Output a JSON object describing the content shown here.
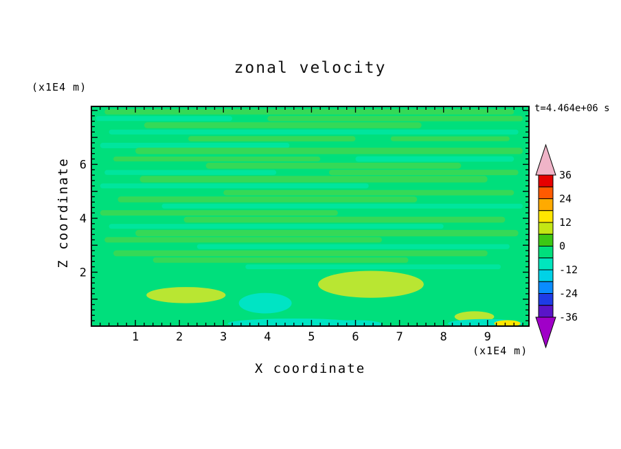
{
  "header": {
    "title": "zonal velocity",
    "time_label": "t=4.464e+06 s"
  },
  "axes": {
    "x": {
      "label": "X coordinate",
      "unit": "(x1E4 m)",
      "tick_labels": [
        "1",
        "2",
        "3",
        "4",
        "5",
        "6",
        "7",
        "8",
        "9"
      ]
    },
    "y": {
      "label": "Z coordinate",
      "unit": "(x1E4 m)",
      "tick_labels": [
        "2",
        "4",
        "6"
      ]
    }
  },
  "chart_data": {
    "type": "heatmap",
    "subtype": "filled-contour",
    "title": "zonal velocity",
    "xlabel": "X coordinate (x1E4 m)",
    "ylabel": "Z coordinate (x1E4 m)",
    "time_annotation": "t=4.464e+06 s",
    "xlim": [
      0,
      9.94
    ],
    "ylim": [
      0,
      8.15
    ],
    "x_tick_values": [
      1,
      2,
      3,
      4,
      5,
      6,
      7,
      8,
      9
    ],
    "y_tick_values": [
      2,
      4,
      6
    ],
    "contour_interval": 6,
    "base_color": "#00df7c",
    "base_value_range": [
      -6,
      0
    ],
    "streak_colors": [
      "#35d957",
      "#00e59d"
    ],
    "streaks": [
      [
        7.95,
        0.3,
        9.6,
        0.1,
        0
      ],
      [
        7.7,
        0.1,
        3.2,
        0.09,
        1
      ],
      [
        7.7,
        4.0,
        9.8,
        0.1,
        0
      ],
      [
        7.45,
        1.2,
        7.5,
        0.11,
        0
      ],
      [
        7.2,
        0.4,
        9.7,
        0.09,
        1
      ],
      [
        6.95,
        2.2,
        6.0,
        0.1,
        0
      ],
      [
        6.95,
        6.8,
        9.5,
        0.09,
        0
      ],
      [
        6.7,
        0.2,
        4.5,
        0.1,
        1
      ],
      [
        6.5,
        1.0,
        9.8,
        0.12,
        0
      ],
      [
        6.2,
        0.5,
        5.2,
        0.09,
        0
      ],
      [
        6.2,
        6.0,
        9.6,
        0.1,
        1
      ],
      [
        5.95,
        2.6,
        8.4,
        0.11,
        0
      ],
      [
        5.7,
        0.3,
        4.2,
        0.09,
        1
      ],
      [
        5.7,
        5.4,
        9.7,
        0.1,
        0
      ],
      [
        5.45,
        1.1,
        9.0,
        0.12,
        0
      ],
      [
        5.2,
        0.2,
        6.3,
        0.09,
        1
      ],
      [
        4.95,
        3.0,
        9.6,
        0.1,
        0
      ],
      [
        4.7,
        0.6,
        7.4,
        0.11,
        0
      ],
      [
        4.45,
        1.6,
        9.8,
        0.09,
        1
      ],
      [
        4.2,
        0.2,
        5.6,
        0.1,
        0
      ],
      [
        3.95,
        2.1,
        9.4,
        0.11,
        0
      ],
      [
        3.7,
        0.4,
        8.0,
        0.09,
        1
      ],
      [
        3.45,
        1.0,
        9.7,
        0.12,
        0
      ],
      [
        3.2,
        0.3,
        6.6,
        0.1,
        0
      ],
      [
        2.95,
        2.4,
        9.5,
        0.09,
        1
      ],
      [
        2.7,
        0.5,
        9.0,
        0.11,
        0
      ],
      [
        2.45,
        1.4,
        7.2,
        0.1,
        0
      ],
      [
        2.2,
        3.5,
        9.3,
        0.09,
        1
      ]
    ],
    "features": [
      {
        "x": 2.15,
        "z": 1.15,
        "rx": 0.9,
        "ry": 0.3,
        "color": "#b9e632",
        "value_range": [
          6,
          12
        ]
      },
      {
        "x": 6.35,
        "z": 1.55,
        "rx": 1.2,
        "ry": 0.5,
        "color": "#b9e632",
        "value_range": [
          6,
          12
        ]
      },
      {
        "x": 8.7,
        "z": 0.35,
        "rx": 0.45,
        "ry": 0.2,
        "color": "#b9e632",
        "value_range": [
          6,
          12
        ]
      },
      {
        "x": 3.95,
        "z": 0.85,
        "rx": 0.6,
        "ry": 0.38,
        "color": "#00e4c4",
        "value_range": [
          -12,
          -6
        ]
      },
      {
        "x": 4.6,
        "z": 0.1,
        "rx": 1.5,
        "ry": 0.18,
        "color": "#00e4c4",
        "value_range": [
          -12,
          -6
        ]
      },
      {
        "x": 6.0,
        "z": 0.08,
        "rx": 0.6,
        "ry": 0.14,
        "color": "#00e4c4",
        "value_range": [
          -12,
          -6
        ]
      },
      {
        "x": 8.95,
        "z": 0.1,
        "rx": 0.85,
        "ry": 0.16,
        "color": "#00e4c4",
        "value_range": [
          -12,
          -6
        ]
      },
      {
        "x": 9.45,
        "z": 0.1,
        "rx": 0.3,
        "ry": 0.12,
        "color": "#ffe600",
        "value_range": [
          12,
          18
        ]
      }
    ],
    "colorbar": {
      "tick_values": [
        36,
        24,
        12,
        0,
        -12,
        -24,
        -36
      ],
      "tick_labels": [
        "36",
        "24",
        "12",
        "0",
        "-12",
        "-24",
        "-36"
      ],
      "cells": [
        {
          "min": 30,
          "max": 36,
          "color": "#e60000"
        },
        {
          "min": 24,
          "max": 30,
          "color": "#ff5a00"
        },
        {
          "min": 18,
          "max": 24,
          "color": "#ffaa00"
        },
        {
          "min": 12,
          "max": 18,
          "color": "#ffe600"
        },
        {
          "min": 6,
          "max": 12,
          "color": "#c3e614"
        },
        {
          "min": 0,
          "max": 6,
          "color": "#3cc814"
        },
        {
          "min": -6,
          "max": 0,
          "color": "#00df7c"
        },
        {
          "min": -12,
          "max": -6,
          "color": "#00e6be"
        },
        {
          "min": -18,
          "max": -12,
          "color": "#00d2e6"
        },
        {
          "min": -24,
          "max": -18,
          "color": "#0a8cff"
        },
        {
          "min": -30,
          "max": -24,
          "color": "#1e3ce6"
        },
        {
          "min": -36,
          "max": -30,
          "color": "#5a14c8"
        }
      ],
      "arrow_top_color": "#f0b4c8",
      "arrow_bottom_color": "#a000c8"
    }
  }
}
